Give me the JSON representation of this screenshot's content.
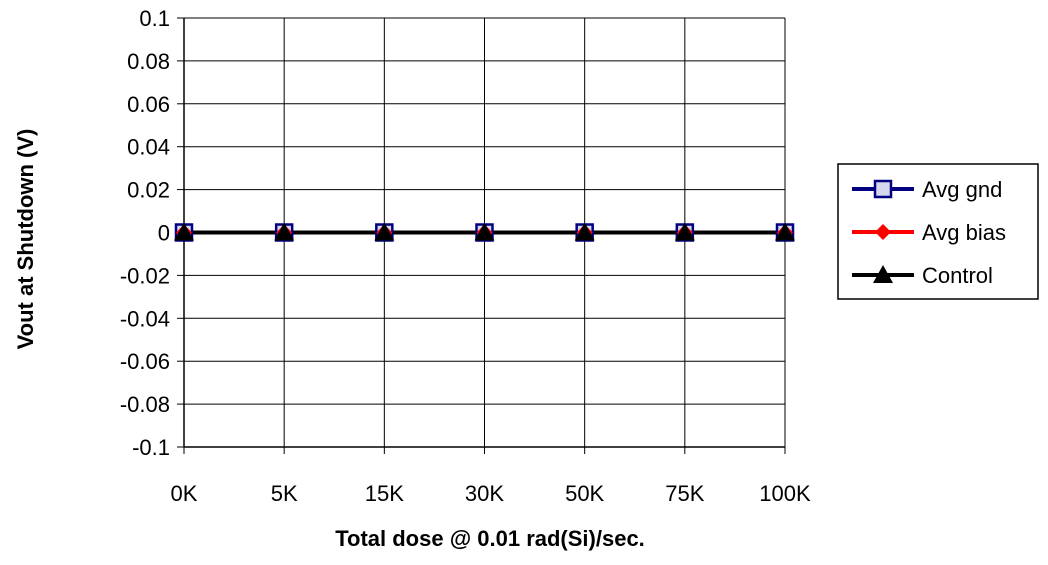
{
  "chart_data": {
    "type": "line",
    "categories": [
      "0K",
      "5K",
      "15K",
      "30K",
      "50K",
      "75K",
      "100K"
    ],
    "series": [
      {
        "name": "Avg gnd",
        "values": [
          0,
          0,
          0,
          0,
          0,
          0,
          0
        ],
        "color": "#000080",
        "marker": "square"
      },
      {
        "name": "Avg bias",
        "values": [
          0,
          0,
          0,
          0,
          0,
          0,
          0
        ],
        "color": "#ff0000",
        "marker": "diamond"
      },
      {
        "name": "Control",
        "values": [
          0,
          0,
          0,
          0,
          0,
          0,
          0
        ],
        "color": "#000000",
        "marker": "triangle"
      }
    ],
    "yticks": [
      "0.1",
      "0.08",
      "0.06",
      "0.04",
      "0.02",
      "0",
      "-0.02",
      "-0.04",
      "-0.06",
      "-0.08",
      "-0.1"
    ],
    "xlabel": "Total dose @ 0.01 rad(Si)/sec.",
    "ylabel": "Vout at Shutdown (V)",
    "ylim": [
      -0.1,
      0.1
    ],
    "grid": true,
    "legend_position": "right"
  }
}
